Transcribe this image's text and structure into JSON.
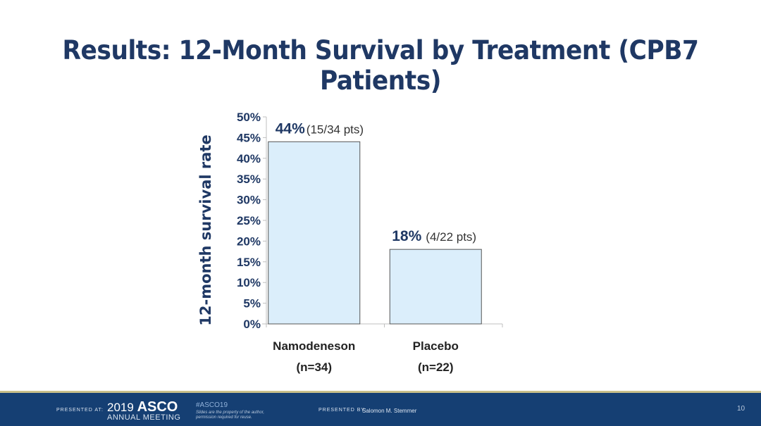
{
  "slide": {
    "title": "Results: 12-Month Survival by Treatment (CPB7 Patients)",
    "page_number": "10"
  },
  "chart_data": {
    "type": "bar",
    "title": "",
    "xlabel": "",
    "ylabel": "12-month survival rate",
    "ylim": [
      0,
      50
    ],
    "yticks": [
      "0%",
      "5%",
      "10%",
      "15%",
      "20%",
      "25%",
      "30%",
      "35%",
      "40%",
      "45%",
      "50%"
    ],
    "categories": [
      "Namodeneson",
      "Placebo"
    ],
    "category_sublabels": [
      "(n=34)",
      "(n=22)"
    ],
    "values": [
      44,
      18
    ],
    "data_labels": [
      "44%",
      "18%"
    ],
    "data_sublabels": [
      "(15/34 pts)",
      "(4/22 pts)"
    ],
    "grid": false,
    "bar_color": "#dbeefb",
    "bar_edge": "#555555"
  },
  "footer": {
    "presented_at_label": "PRESENTED AT:",
    "meeting_year": "2019",
    "meeting_name": "ASCO",
    "meeting_sub": "ANNUAL MEETING",
    "hashtag": "#ASCO19",
    "note": "Slides are the property of the author, permission required for reuse.",
    "presented_by_label": "PRESENTED BY:",
    "presenter": "Salomon M. Stemmer",
    "bg_color": "#153f73"
  }
}
